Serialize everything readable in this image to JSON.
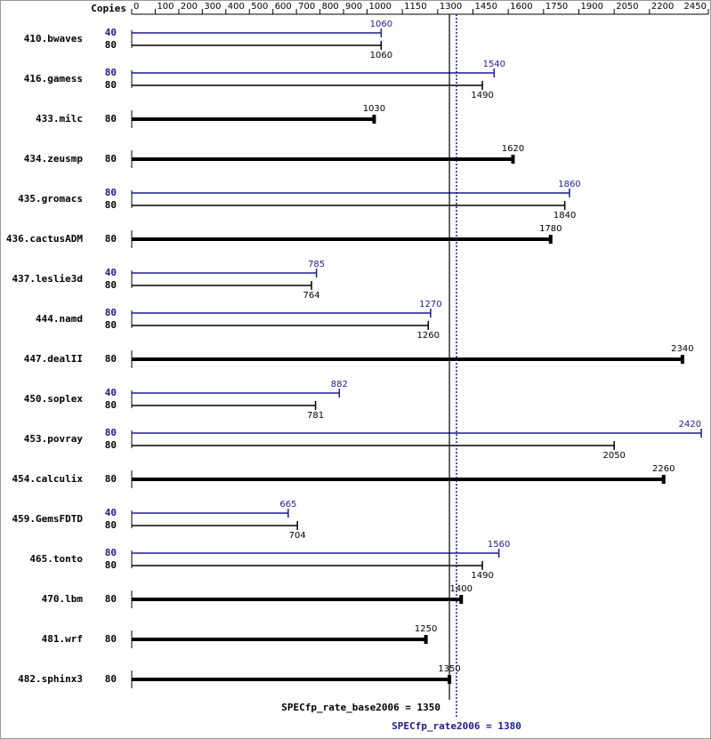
{
  "chart_data": {
    "type": "bar",
    "axis_header": "Copies",
    "categories": [
      "410.bwaves",
      "416.gamess",
      "433.milc",
      "434.zeusmp",
      "435.gromacs",
      "436.cactusADM",
      "437.leslie3d",
      "444.namd",
      "447.dealII",
      "450.soplex",
      "453.povray",
      "454.calculix",
      "459.GemsFDTD",
      "465.tonto",
      "470.lbm",
      "481.wrf",
      "482.sphinx3"
    ],
    "series": [
      {
        "color": "#1c1c8a",
        "copies": [
          40,
          80,
          null,
          null,
          80,
          null,
          40,
          80,
          null,
          40,
          80,
          null,
          40,
          80,
          null,
          null,
          null
        ],
        "values": [
          1060,
          1540,
          null,
          null,
          1860,
          null,
          785,
          1270,
          null,
          882,
          2420,
          null,
          665,
          1560,
          null,
          null,
          null
        ]
      },
      {
        "color": "#000000",
        "copies": [
          80,
          80,
          80,
          80,
          80,
          80,
          80,
          80,
          80,
          80,
          80,
          80,
          80,
          80,
          80,
          80,
          80
        ],
        "values": [
          1060,
          1490,
          1030,
          1620,
          1840,
          1780,
          764,
          1260,
          2340,
          781,
          2050,
          2260,
          704,
          1490,
          1400,
          1250,
          1350
        ]
      }
    ],
    "xlim": [
      0,
      2450
    ],
    "xticks": [
      0,
      100,
      200,
      300,
      400,
      500,
      600,
      700,
      800,
      900,
      1000,
      1150,
      1300,
      1450,
      1600,
      1750,
      1900,
      2050,
      2200,
      2450
    ],
    "reference_lines": [
      {
        "label": "SPECfp_rate_base2006 = 1350",
        "value": 1350,
        "color": "#000000",
        "style": "solid"
      },
      {
        "label": "SPECfp_rate2006 = 1380",
        "value": 1380,
        "color": "#1c1c8a",
        "style": "dotted"
      }
    ]
  }
}
